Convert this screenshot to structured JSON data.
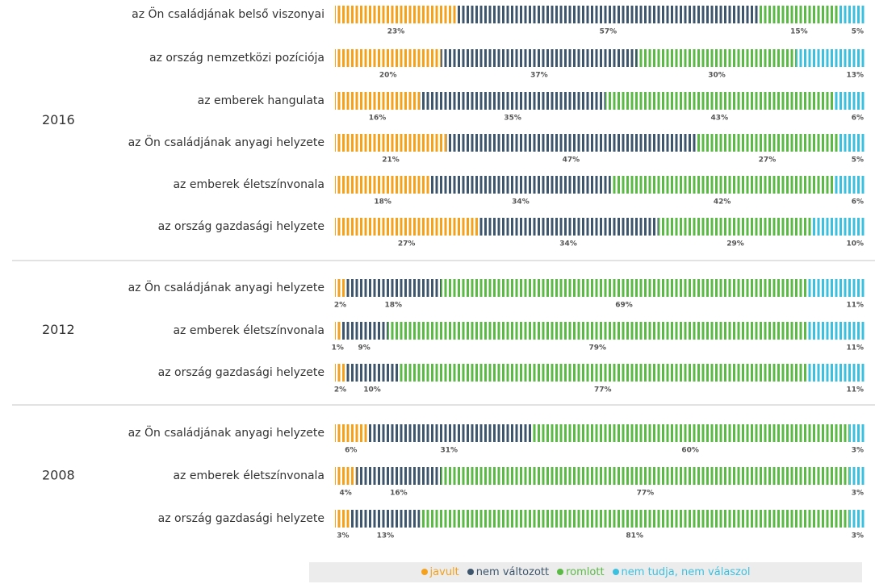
{
  "chart_data": [
    {
      "type": "stacked-bar",
      "title": "2016",
      "categories": [
        "az Ön családjának belső viszonyai",
        "az ország nemzetközi pozíciója",
        "az emberek hangulata",
        "az Ön családjának anyagi helyzete",
        "az emberek életszínvonala",
        "az ország gazdasági helyzete"
      ],
      "series": [
        {
          "name": "javult",
          "color": "#f5a11c",
          "values": [
            23,
            20,
            16,
            21,
            18,
            27
          ],
          "value_labels": [
            "23%",
            "20%",
            "16%",
            "21%",
            "18%",
            "27%"
          ]
        },
        {
          "name": "nem változott",
          "color": "#3d566d",
          "values": [
            57,
            37,
            35,
            47,
            34,
            34
          ],
          "value_labels": [
            "57%",
            "37%",
            "35%",
            "47%",
            "34%",
            "34%"
          ]
        },
        {
          "name": "romlott",
          "color": "#5bb946",
          "values": [
            15,
            30,
            43,
            27,
            42,
            29
          ],
          "value_labels": [
            "15%",
            "30%",
            "43%",
            "27%",
            "42%",
            "29%"
          ]
        },
        {
          "name": "nem tudja, nem válaszol",
          "color": "#3cc0e0",
          "values": [
            5,
            13,
            6,
            5,
            6,
            10
          ],
          "value_labels": [
            "5%",
            "13%",
            "6%",
            "5%",
            "6%",
            "10%"
          ]
        }
      ]
    },
    {
      "type": "stacked-bar",
      "title": "2012",
      "categories": [
        "az Ön családjának anyagi helyzete",
        "az emberek életszínvonala",
        "az ország gazdasági helyzete"
      ],
      "series": [
        {
          "color": "#f5a11c",
          "values": [
            2,
            1,
            2
          ],
          "value_labels": [
            "2%",
            "1%",
            "2%"
          ]
        },
        {
          "color": "#3d566d",
          "values": [
            18,
            9,
            10
          ],
          "value_labels": [
            "18%",
            "9%",
            "10%"
          ]
        },
        {
          "color": "#5bb946",
          "values": [
            69,
            79,
            77
          ],
          "value_labels": [
            "69%",
            "79%",
            "77%"
          ]
        },
        {
          "color": "#3cc0e0",
          "values": [
            11,
            11,
            11
          ],
          "value_labels": [
            "11%",
            "11%",
            "11%"
          ]
        }
      ]
    },
    {
      "type": "stacked-bar",
      "title": "2008",
      "categories": [
        "az Ön családjának anyagi helyzete",
        "az emberek életszínvonala",
        "az ország gazdasági helyzete"
      ],
      "series": [
        {
          "color": "#f5a11c",
          "values": [
            6,
            4,
            3
          ],
          "value_labels": [
            "6%",
            "4%",
            "3%"
          ]
        },
        {
          "color": "#3d566d",
          "values": [
            31,
            16,
            13
          ],
          "value_labels": [
            "31%",
            "16%",
            "13%"
          ]
        },
        {
          "color": "#5bb946",
          "values": [
            60,
            77,
            81
          ],
          "value_labels": [
            "60%",
            "77%",
            "81%"
          ]
        },
        {
          "color": "#3cc0e0",
          "values": [
            3,
            3,
            3
          ],
          "value_labels": [
            "3%",
            "3%",
            "3%"
          ]
        }
      ]
    }
  ]
}
